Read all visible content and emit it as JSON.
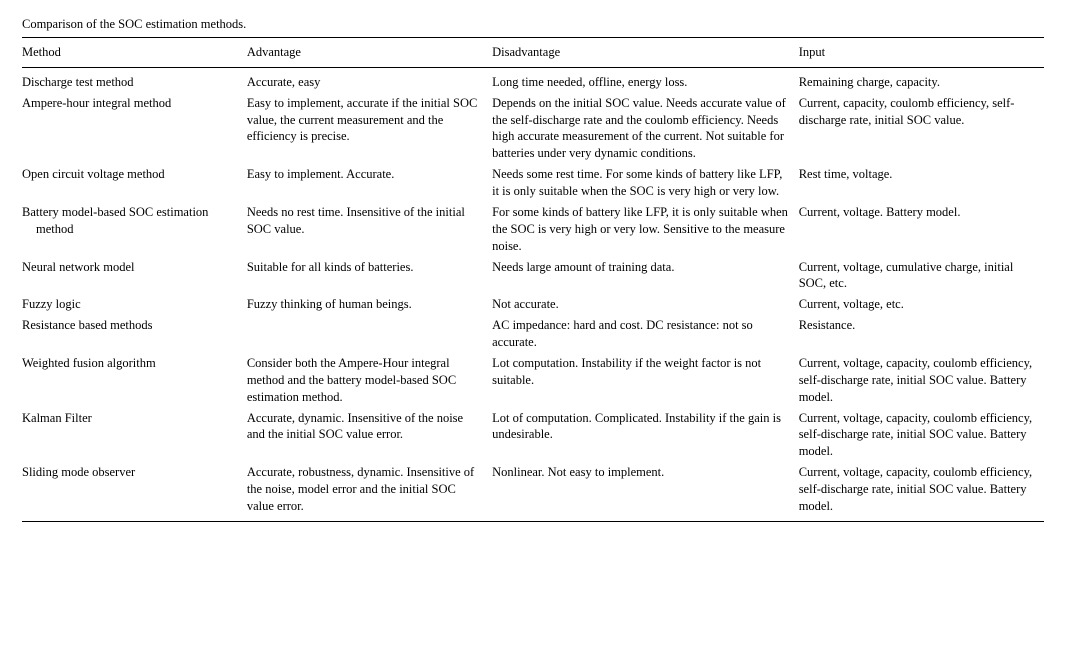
{
  "title": "Comparison of the SOC estimation methods.",
  "columns": [
    "Method",
    "Advantage",
    "Disadvantage",
    "Input"
  ],
  "rows": [
    {
      "method": "Discharge test method",
      "advantage": "Accurate, easy",
      "disadvantage": "Long time needed, offline, energy loss.",
      "input": "Remaining charge, capacity."
    },
    {
      "method": "Ampere-hour integral method",
      "advantage": "Easy to implement, accurate if the initial SOC value, the current measurement and the efficiency is precise.",
      "disadvantage": "Depends on the initial SOC value. Needs accurate value of the self-discharge rate and the coulomb efficiency. Needs high accurate measurement of the current. Not suitable for batteries under very dynamic conditions.",
      "input": "Current, capacity, coulomb efficiency, self-discharge rate, initial SOC value."
    },
    {
      "method": "Open circuit voltage method",
      "advantage": "Easy to implement. Accurate.",
      "disadvantage": "Needs some rest time. For some kinds of battery like LFP, it is only suitable when the SOC is very high or very low.",
      "input": "Rest time, voltage."
    },
    {
      "method": "Battery model-based SOC estimation method",
      "advantage": "Needs no rest time. Insensitive of the initial SOC value.",
      "disadvantage": "For some kinds of battery like LFP, it is only suitable when the SOC is very high or very low. Sensitive to the measure noise.",
      "input": "Current, voltage. Battery model."
    },
    {
      "method": "Neural network model",
      "advantage": "Suitable for all kinds of batteries.",
      "disadvantage": "Needs large amount of training data.",
      "input": "Current, voltage, cumulative charge, initial SOC, etc."
    },
    {
      "method": "Fuzzy logic",
      "advantage": "Fuzzy thinking of human beings.",
      "disadvantage": "Not accurate.",
      "input": "Current, voltage, etc."
    },
    {
      "method": "Resistance based methods",
      "advantage": "",
      "disadvantage": "AC impedance: hard and cost. DC resistance: not so accurate.",
      "input": "Resistance."
    },
    {
      "method": "Weighted fusion algorithm",
      "advantage": "Consider both the Ampere-Hour integral method and the battery model-based SOC estimation method.",
      "disadvantage": "Lot computation. Instability if the weight factor is not suitable.",
      "input": "Current, voltage, capacity, coulomb efficiency, self-discharge rate, initial SOC value. Battery model."
    },
    {
      "method": "Kalman Filter",
      "advantage": "Accurate, dynamic. Insensitive of the noise and the initial SOC value error.",
      "disadvantage": "Lot of computation. Complicated. Instability if the gain is undesirable.",
      "input": "Current, voltage, capacity, coulomb efficiency, self-discharge rate, initial SOC value. Battery model."
    },
    {
      "method": "Sliding mode observer",
      "advantage": "Accurate, robustness, dynamic. Insensitive of the noise, model error and the initial SOC value error.",
      "disadvantage": "Nonlinear. Not easy to implement.",
      "input": "Current, voltage, capacity, coulomb efficiency, self-discharge rate, initial SOC value. Battery model."
    }
  ]
}
